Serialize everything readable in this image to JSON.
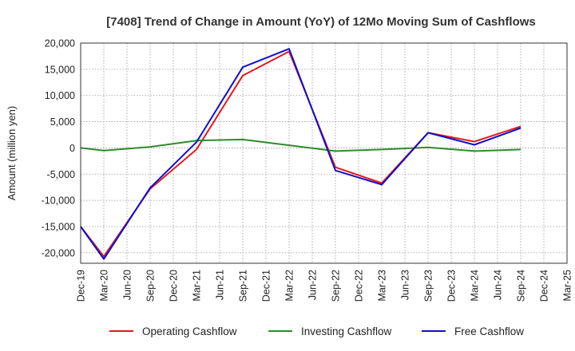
{
  "chart_data": {
    "type": "line",
    "title": "[7408]  Trend of Change in Amount (YoY) of 12Mo Moving Sum of Cashflows",
    "xlabel": "",
    "ylabel": "Amount (million yen)",
    "ylim": [
      -22000,
      20000
    ],
    "yticks": [
      20000,
      15000,
      10000,
      5000,
      0,
      -5000,
      -10000,
      -15000,
      -20000
    ],
    "ytick_labels": [
      "20,000",
      "15,000",
      "10,000",
      "5,000",
      "0",
      "-5,000",
      "-10,000",
      "-15,000",
      "-20,000"
    ],
    "categories": [
      "Dec-19",
      "Mar-20",
      "Jun-20",
      "Sep-20",
      "Dec-20",
      "Mar-21",
      "Jun-21",
      "Sep-21",
      "Dec-21",
      "Mar-22",
      "Jun-22",
      "Sep-22",
      "Dec-22",
      "Mar-23",
      "Jun-23",
      "Sep-23",
      "Dec-23",
      "Mar-24",
      "Jun-24",
      "Sep-24",
      "Dec-24",
      "Mar-25"
    ],
    "grid": true,
    "legend_position": "bottom",
    "series": [
      {
        "name": "Operating Cashflow",
        "color": "#e31a1c",
        "points": [
          [
            0,
            -15000
          ],
          [
            1,
            -20700
          ],
          [
            3,
            -7800
          ],
          [
            5,
            -300
          ],
          [
            7,
            13800
          ],
          [
            9,
            18400
          ],
          [
            11,
            -3700
          ],
          [
            13,
            -6700
          ],
          [
            15,
            2900
          ],
          [
            17,
            1200
          ],
          [
            19,
            4100
          ]
        ]
      },
      {
        "name": "Investing Cashflow",
        "color": "#2e8b2e",
        "points": [
          [
            0,
            0
          ],
          [
            1,
            -500
          ],
          [
            3,
            200
          ],
          [
            5,
            1400
          ],
          [
            7,
            1600
          ],
          [
            9,
            500
          ],
          [
            11,
            -600
          ],
          [
            13,
            -300
          ],
          [
            15,
            100
          ],
          [
            17,
            -600
          ],
          [
            19,
            -300
          ]
        ]
      },
      {
        "name": "Free Cashflow",
        "color": "#1010c8",
        "points": [
          [
            0,
            -15000
          ],
          [
            1,
            -21200
          ],
          [
            3,
            -7600
          ],
          [
            5,
            1100
          ],
          [
            7,
            15400
          ],
          [
            9,
            18900
          ],
          [
            11,
            -4300
          ],
          [
            13,
            -7000
          ],
          [
            15,
            2900
          ],
          [
            17,
            600
          ],
          [
            19,
            3800
          ]
        ]
      }
    ]
  }
}
